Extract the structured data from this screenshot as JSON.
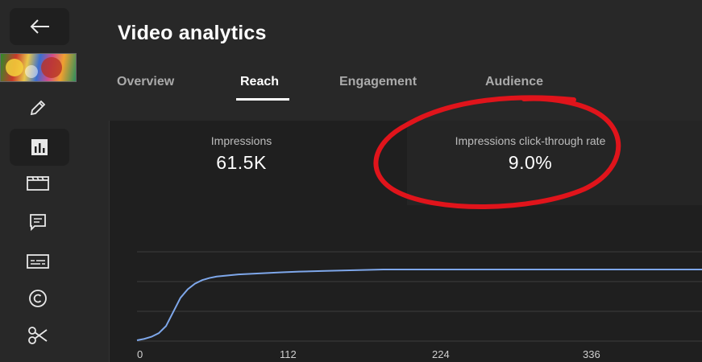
{
  "sidebar": {
    "icons": [
      "back-arrow-icon",
      "edit-pencil-icon",
      "analytics-icon",
      "editor-clapper-icon",
      "comments-icon",
      "subtitles-icon",
      "copyright-icon",
      "clips-scissors-icon"
    ]
  },
  "page": {
    "title": "Video analytics"
  },
  "tabs": [
    {
      "label": "Overview",
      "active": false
    },
    {
      "label": "Reach",
      "active": true
    },
    {
      "label": "Engagement",
      "active": false
    },
    {
      "label": "Audience",
      "active": false
    }
  ],
  "metrics": [
    {
      "label": "Impressions",
      "value": "61.5K"
    },
    {
      "label": "Impressions click-through rate",
      "value": "9.0%"
    }
  ],
  "colors": {
    "background": "#282828",
    "card": "#1f1f1f",
    "line": "#7ea7ea",
    "annotation": "#e0141b"
  },
  "chart_data": {
    "type": "line",
    "x": [
      0,
      5,
      10,
      15,
      20,
      25,
      30,
      35,
      40,
      45,
      50,
      55,
      60,
      65,
      70,
      80,
      90,
      100,
      112,
      130,
      150,
      170,
      200,
      224,
      260,
      300,
      336,
      380,
      400
    ],
    "y": [
      0,
      0.02,
      0.05,
      0.1,
      0.2,
      0.4,
      0.6,
      0.72,
      0.8,
      0.85,
      0.88,
      0.9,
      0.91,
      0.92,
      0.93,
      0.94,
      0.95,
      0.96,
      0.97,
      0.98,
      0.99,
      1.0,
      1.0,
      1.0,
      1.0,
      1.0,
      1.0,
      1.0,
      1.0
    ],
    "xticks": [
      "0",
      "112",
      "224",
      "336"
    ],
    "xlim": [
      0,
      390
    ],
    "ylim": [
      0,
      1.25
    ],
    "grid": true
  }
}
